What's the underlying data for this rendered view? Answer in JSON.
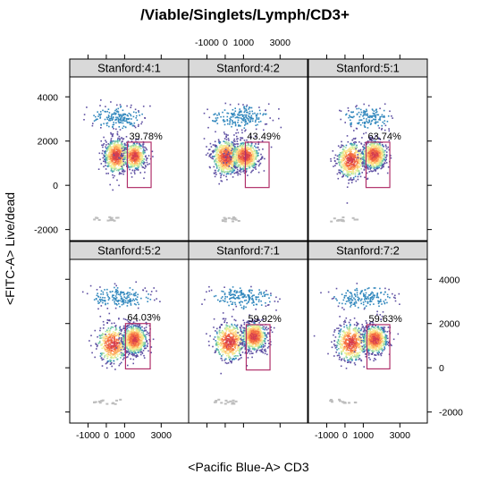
{
  "chart_data": {
    "type": "scatter",
    "title": "/Viable/Singlets/Lymph/CD3+",
    "xlabel": "<Pacific Blue-A> CD3",
    "ylabel": "<FITC-A> Live/dead",
    "xlim": [
      -2000,
      4500
    ],
    "ylim": [
      -2500,
      4900
    ],
    "x_ticks": [
      -1000,
      0,
      1000,
      3000
    ],
    "y_ticks": [
      -2000,
      0,
      2000,
      4000
    ],
    "x_tick_labels": [
      "-1000",
      "0",
      "1000",
      "3000"
    ],
    "y_tick_labels": [
      "-2000",
      "0",
      "2000",
      "4000"
    ],
    "layout": {
      "rows": 2,
      "cols": 3
    },
    "panel_style": {
      "strip_color": "#d9d9d9",
      "gate_color": "#b0306a",
      "density_palette": "Spectral"
    },
    "panels": [
      {
        "strip": "Stanford:4:1",
        "gate_label": "39.78%",
        "gate": {
          "x": [
            1150,
            2450
          ],
          "y": [
            -100,
            1950
          ]
        },
        "clusters": [
          {
            "x": 500,
            "y": 1350,
            "sx": 320,
            "sy": 380,
            "n": 700
          },
          {
            "x": 1500,
            "y": 1350,
            "sx": 300,
            "sy": 300,
            "n": 500
          },
          {
            "x": 600,
            "y": 3100,
            "sx": 700,
            "sy": 250,
            "n": 180
          }
        ]
      },
      {
        "strip": "Stanford:4:2",
        "gate_label": "43.49%",
        "gate": {
          "x": [
            1100,
            2400
          ],
          "y": [
            -100,
            1950
          ]
        },
        "clusters": [
          {
            "x": 0,
            "y": 1300,
            "sx": 350,
            "sy": 400,
            "n": 650
          },
          {
            "x": 1050,
            "y": 1350,
            "sx": 380,
            "sy": 320,
            "n": 600
          },
          {
            "x": 800,
            "y": 3100,
            "sx": 800,
            "sy": 250,
            "n": 200
          }
        ]
      },
      {
        "strip": "Stanford:5:1",
        "gate_label": "63.74%",
        "gate": {
          "x": [
            1150,
            2450
          ],
          "y": [
            -100,
            1950
          ]
        },
        "clusters": [
          {
            "x": 300,
            "y": 1150,
            "sx": 380,
            "sy": 400,
            "n": 500
          },
          {
            "x": 1550,
            "y": 1400,
            "sx": 330,
            "sy": 320,
            "n": 750
          },
          {
            "x": 1200,
            "y": 3100,
            "sx": 650,
            "sy": 250,
            "n": 150
          }
        ]
      },
      {
        "strip": "Stanford:5:2",
        "gate_label": "64.03%",
        "gate": {
          "x": [
            1050,
            2400
          ],
          "y": [
            -50,
            2000
          ]
        },
        "clusters": [
          {
            "x": 300,
            "y": 1100,
            "sx": 420,
            "sy": 420,
            "n": 450
          },
          {
            "x": 1500,
            "y": 1300,
            "sx": 330,
            "sy": 320,
            "n": 750
          },
          {
            "x": 800,
            "y": 3200,
            "sx": 800,
            "sy": 250,
            "n": 180
          }
        ]
      },
      {
        "strip": "Stanford:7:1",
        "gate_label": "59.92%",
        "gate": {
          "x": [
            1150,
            2450
          ],
          "y": [
            -100,
            1950
          ]
        },
        "clusters": [
          {
            "x": 200,
            "y": 1200,
            "sx": 420,
            "sy": 420,
            "n": 500
          },
          {
            "x": 1550,
            "y": 1450,
            "sx": 330,
            "sy": 320,
            "n": 700
          },
          {
            "x": 900,
            "y": 3200,
            "sx": 800,
            "sy": 250,
            "n": 180
          }
        ]
      },
      {
        "strip": "Stanford:7:2",
        "gate_label": "59.63%",
        "gate": {
          "x": [
            1200,
            2450
          ],
          "y": [
            -50,
            1950
          ]
        },
        "clusters": [
          {
            "x": 300,
            "y": 1150,
            "sx": 420,
            "sy": 420,
            "n": 500
          },
          {
            "x": 1600,
            "y": 1300,
            "sx": 330,
            "sy": 320,
            "n": 700
          },
          {
            "x": 1000,
            "y": 3200,
            "sx": 800,
            "sy": 250,
            "n": 180
          }
        ]
      }
    ]
  }
}
